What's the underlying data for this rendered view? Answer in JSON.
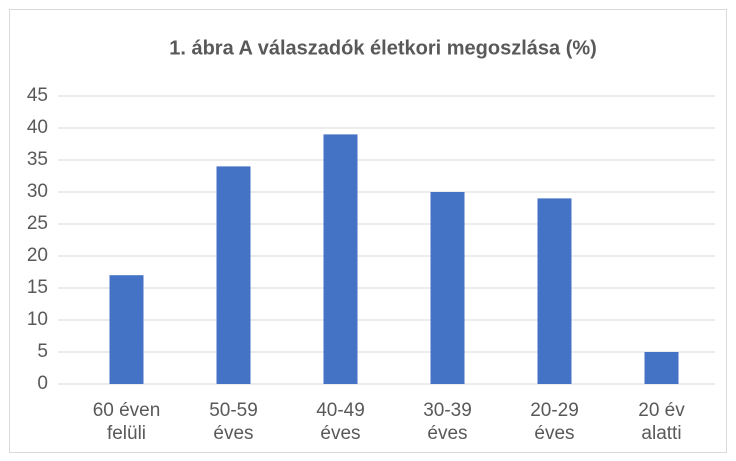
{
  "chart_data": {
    "type": "bar",
    "title": "1. ábra A válaszadók életkori megoszlása (%)",
    "categories": [
      "60 éven felüli",
      "50-59 éves",
      "40-49 éves",
      "30-39 éves",
      "20-29 éves",
      "20 év alatti"
    ],
    "values": [
      17,
      34,
      39,
      30,
      29,
      5
    ],
    "color": "#4472c4",
    "ylim": [
      0,
      45
    ],
    "yticks": [
      0,
      5,
      10,
      15,
      20,
      25,
      30,
      35,
      40,
      45
    ],
    "grid": true
  }
}
